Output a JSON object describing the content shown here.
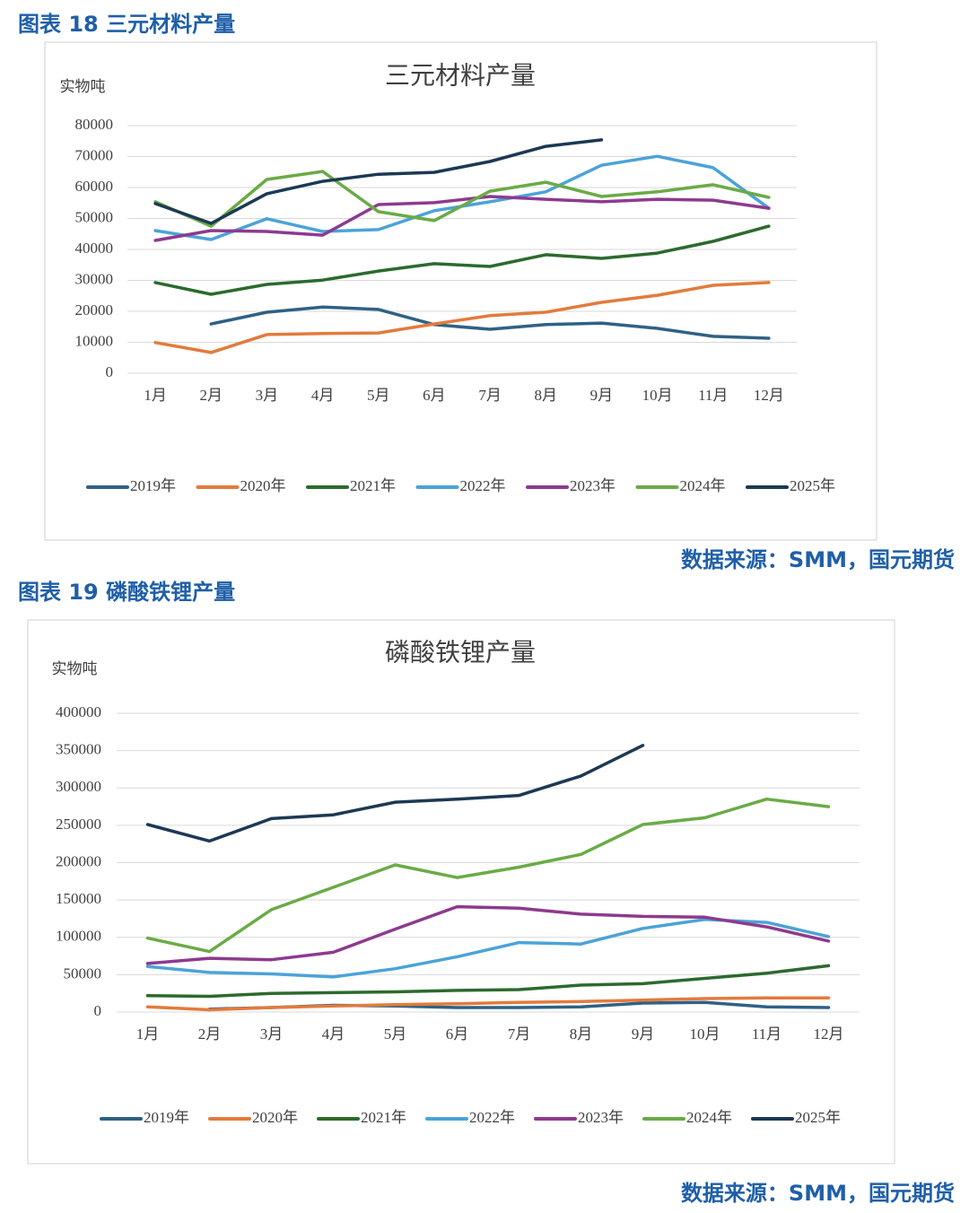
{
  "figures": [
    {
      "caption": "图表 18 三元材料产量",
      "source": "数据来源：SMM，国元期货"
    },
    {
      "caption": "图表 19 磷酸铁锂产量",
      "source": "数据来源：SMM，国元期货"
    }
  ],
  "chart_data": [
    {
      "type": "line",
      "title": "三元材料产量",
      "y_label": "实物吨",
      "categories": [
        "1月",
        "2月",
        "3月",
        "4月",
        "5月",
        "6月",
        "7月",
        "8月",
        "9月",
        "10月",
        "11月",
        "12月"
      ],
      "ylim": [
        0,
        80000
      ],
      "yticks": [
        0,
        10000,
        20000,
        30000,
        40000,
        50000,
        60000,
        70000,
        80000
      ],
      "grid": true,
      "legend": "bottom",
      "series": [
        {
          "name": "2019年",
          "color": "#2f6185",
          "values": [
            null,
            15900,
            19700,
            21400,
            20600,
            15700,
            14200,
            15700,
            16200,
            14500,
            11900,
            11300
          ]
        },
        {
          "name": "2020年",
          "color": "#e27b3c",
          "values": [
            9900,
            6700,
            12500,
            12800,
            13000,
            15900,
            18600,
            19700,
            22900,
            25200,
            28400,
            29300
          ]
        },
        {
          "name": "2021年",
          "color": "#2c6a2e",
          "values": [
            29300,
            25500,
            28700,
            30100,
            33000,
            35400,
            34500,
            38300,
            37100,
            38800,
            42600,
            47500
          ]
        },
        {
          "name": "2022年",
          "color": "#4ba3d8",
          "values": [
            46100,
            43200,
            49900,
            45800,
            46400,
            52500,
            55400,
            58600,
            67200,
            70100,
            66400,
            53300
          ]
        },
        {
          "name": "2023年",
          "color": "#8d3a8f",
          "values": [
            42900,
            46100,
            45800,
            44600,
            54500,
            55100,
            57100,
            56200,
            55400,
            56200,
            55900,
            53300
          ]
        },
        {
          "name": "2024年",
          "color": "#6aab46",
          "values": [
            55400,
            47500,
            62600,
            65200,
            52200,
            49300,
            58800,
            61700,
            57100,
            58600,
            60900,
            56800
          ]
        },
        {
          "name": "2025年",
          "color": "#1c3955",
          "values": [
            54800,
            48400,
            58000,
            62000,
            64300,
            64900,
            68400,
            73300,
            75400,
            null,
            null,
            null
          ]
        }
      ]
    },
    {
      "type": "line",
      "title": "磷酸铁锂产量",
      "y_label": "实物吨",
      "categories": [
        "1月",
        "2月",
        "3月",
        "4月",
        "5月",
        "6月",
        "7月",
        "8月",
        "9月",
        "10月",
        "11月",
        "12月"
      ],
      "ylim": [
        0,
        400000
      ],
      "yticks": [
        0,
        50000,
        100000,
        150000,
        200000,
        250000,
        300000,
        350000,
        400000
      ],
      "grid": true,
      "legend": "bottom",
      "series": [
        {
          "name": "2019年",
          "color": "#2f6185",
          "values": [
            null,
            4000,
            6000,
            9000,
            8000,
            6000,
            6000,
            7000,
            12000,
            13000,
            7000,
            6000
          ]
        },
        {
          "name": "2020年",
          "color": "#e27b3c",
          "values": [
            7000,
            3000,
            6000,
            8000,
            10000,
            11000,
            13000,
            14000,
            16000,
            18000,
            19000,
            19000
          ]
        },
        {
          "name": "2021年",
          "color": "#2c6a2e",
          "values": [
            22000,
            21000,
            25000,
            26000,
            27000,
            29000,
            30000,
            36000,
            38000,
            45000,
            52000,
            62000
          ]
        },
        {
          "name": "2022年",
          "color": "#4ba3d8",
          "values": [
            61000,
            53000,
            51000,
            47000,
            58000,
            74000,
            93000,
            91000,
            112000,
            124000,
            120000,
            101000
          ]
        },
        {
          "name": "2023年",
          "color": "#8d3a8f",
          "values": [
            65000,
            72000,
            70000,
            80000,
            111000,
            141000,
            139000,
            131000,
            128000,
            127000,
            114000,
            95000
          ]
        },
        {
          "name": "2024年",
          "color": "#6aab46",
          "values": [
            99000,
            81000,
            137000,
            167000,
            197000,
            180000,
            194000,
            211000,
            251000,
            260000,
            285000,
            275000
          ]
        },
        {
          "name": "2025年",
          "color": "#1c3955",
          "values": [
            251000,
            229000,
            259000,
            264000,
            281000,
            285000,
            290000,
            316000,
            357000,
            null,
            null,
            null
          ]
        }
      ]
    }
  ]
}
